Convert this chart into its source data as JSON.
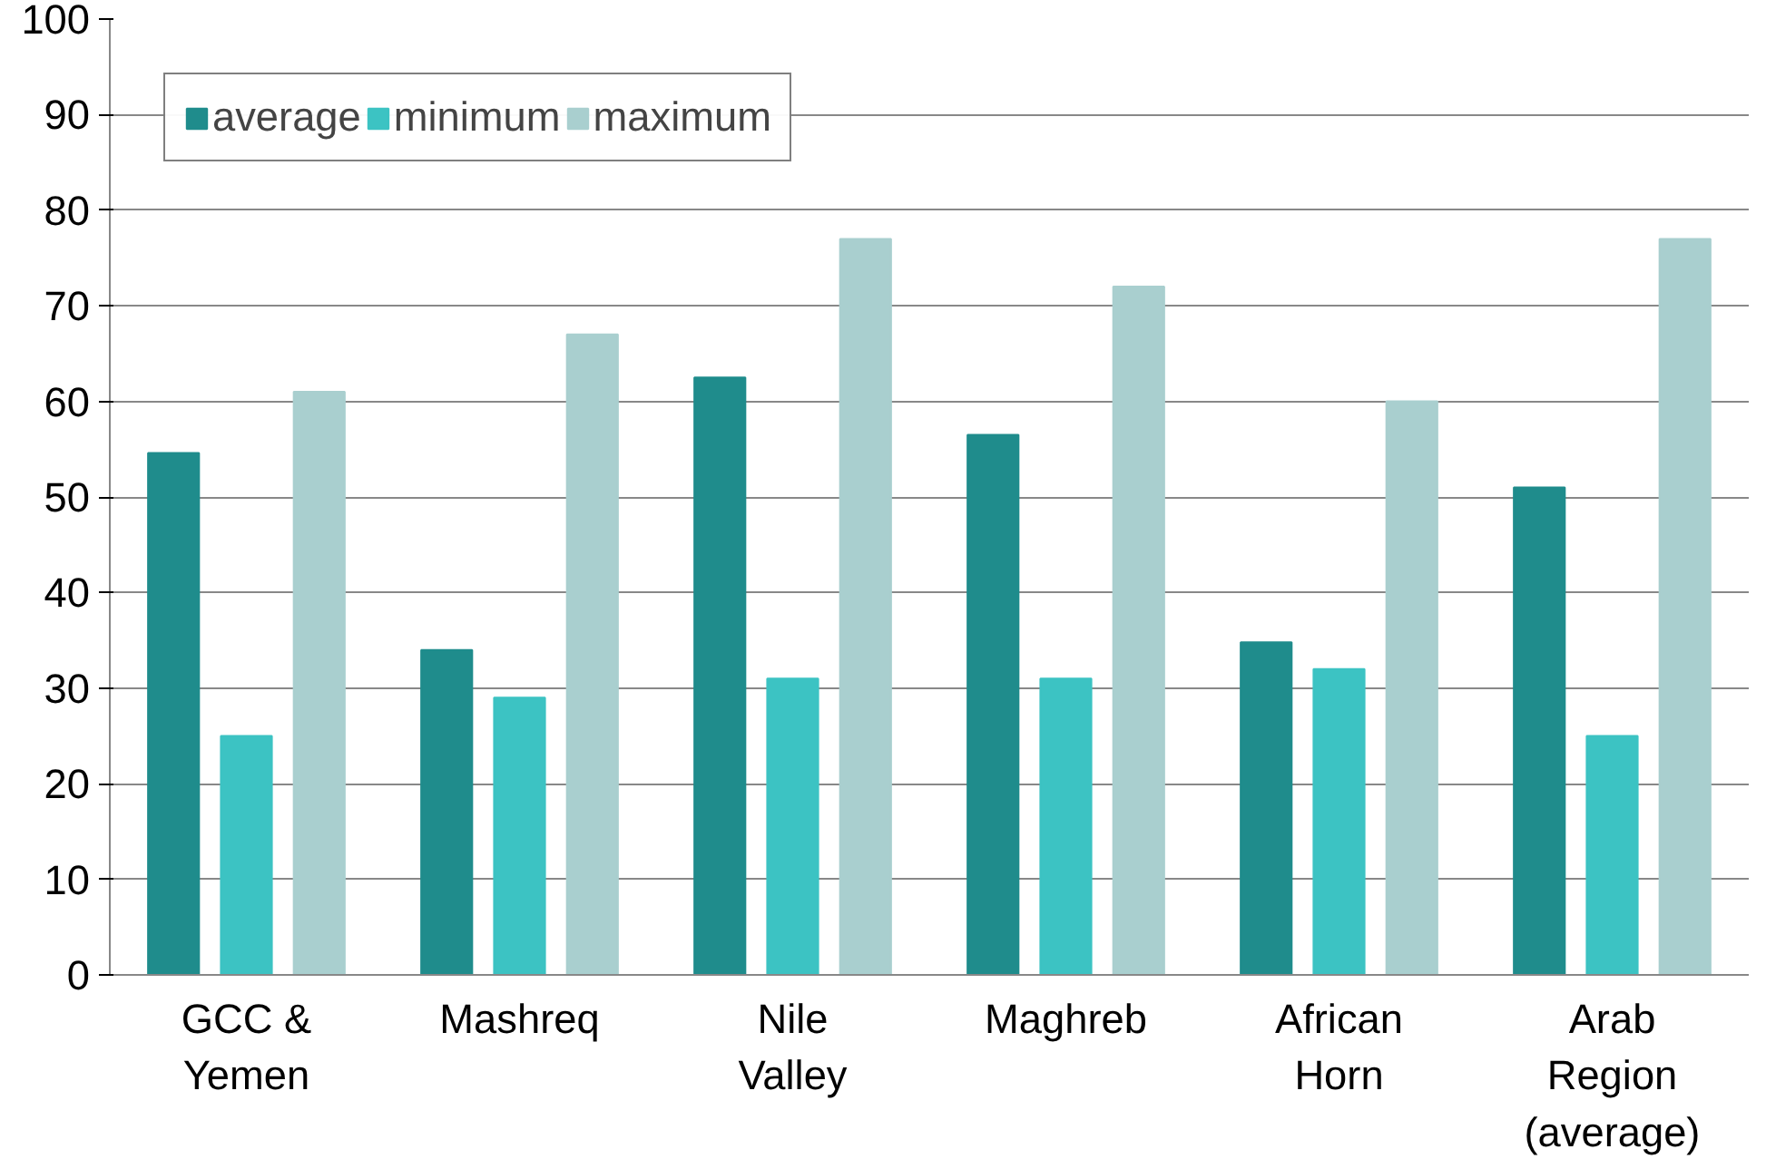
{
  "chart_data": {
    "type": "bar",
    "categories": [
      "GCC &\nYemen",
      "Mashreq",
      "Nile\nValley",
      "Maghreb",
      "African\nHorn",
      "Arab\nRegion\n(average)"
    ],
    "series": [
      {
        "name": "average",
        "color": "#1f8c8c",
        "values": [
          54.6,
          34,
          62.5,
          56.5,
          34.8,
          51
        ]
      },
      {
        "name": "minimum",
        "color": "#3cc3c3",
        "values": [
          25,
          29,
          31,
          31,
          32,
          25
        ]
      },
      {
        "name": "maximum",
        "color": "#a9cfcf",
        "values": [
          61,
          67,
          77,
          72,
          60,
          77
        ]
      }
    ],
    "ylim": [
      0,
      100
    ],
    "yticks": [
      0,
      10,
      20,
      30,
      40,
      50,
      60,
      70,
      80,
      90,
      100
    ],
    "grid": "y",
    "legend": "top left"
  }
}
